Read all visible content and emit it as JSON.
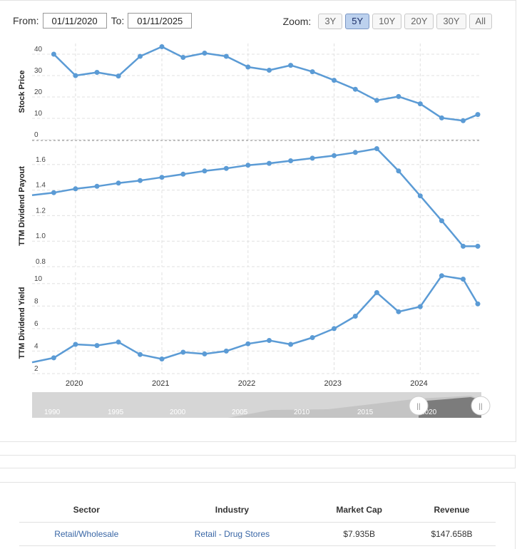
{
  "controls": {
    "from_label": "From:",
    "from_value": "01/11/2020",
    "to_label": "To:",
    "to_value": "01/11/2025",
    "zoom_label": "Zoom:",
    "zoom_options": [
      "3Y",
      "5Y",
      "10Y",
      "20Y",
      "30Y",
      "All"
    ],
    "zoom_active": "5Y"
  },
  "colors": {
    "line": "#5b9bd5",
    "grid": "#e0e0e0",
    "navigator_fill": "#d6d6d6",
    "navigator_selected": "#7c7c7c",
    "zoom_active_bg": "#bcd1ee"
  },
  "chart_data": [
    {
      "type": "line",
      "ylabel": "Stock Price",
      "ylim": [
        0,
        45
      ],
      "yticks": [
        "0",
        "10",
        "20",
        "30",
        "40"
      ],
      "grid": true,
      "x": [
        "2019-10",
        "2020-01",
        "2020-04",
        "2020-07",
        "2020-10",
        "2021-01",
        "2021-04",
        "2021-07",
        "2021-10",
        "2022-01",
        "2022-04",
        "2022-07",
        "2022-10",
        "2023-01",
        "2023-04",
        "2023-07",
        "2023-10",
        "2024-01",
        "2024-04",
        "2024-07",
        "2024-09"
      ],
      "values": [
        40,
        30,
        31.5,
        29.8,
        39,
        43.5,
        38.5,
        40.5,
        39,
        34,
        32.5,
        34.8,
        31.8,
        27.8,
        23.6,
        18.4,
        20.2,
        16.8,
        10.2,
        8.9,
        11.8
      ]
    },
    {
      "type": "line",
      "ylabel": "TTM Dividend Payout",
      "ylim": [
        0.8,
        1.75
      ],
      "yticks": [
        "0.8",
        "1.0",
        "1.2",
        "1.4",
        "1.6"
      ],
      "grid": true,
      "x": [
        "2019-07",
        "2019-10",
        "2020-01",
        "2020-04",
        "2020-07",
        "2020-10",
        "2021-01",
        "2021-04",
        "2021-07",
        "2021-10",
        "2022-01",
        "2022-04",
        "2022-07",
        "2022-10",
        "2023-01",
        "2023-04",
        "2023-07",
        "2023-10",
        "2024-01",
        "2024-04",
        "2024-07",
        "2024-09"
      ],
      "values": [
        1.36,
        1.38,
        1.41,
        1.43,
        1.455,
        1.475,
        1.5,
        1.525,
        1.55,
        1.57,
        1.595,
        1.61,
        1.63,
        1.65,
        1.67,
        1.695,
        1.725,
        1.55,
        1.355,
        1.16,
        0.96,
        0.96
      ]
    },
    {
      "type": "line",
      "ylabel": "TTM Dividend Yield",
      "ylim": [
        2,
        11
      ],
      "yticks": [
        "2",
        "4",
        "6",
        "8",
        "10"
      ],
      "xticks": [
        "2020",
        "2021",
        "2022",
        "2023",
        "2024"
      ],
      "grid": true,
      "x": [
        "2019-07",
        "2019-10",
        "2020-01",
        "2020-04",
        "2020-07",
        "2020-10",
        "2021-01",
        "2021-04",
        "2021-07",
        "2021-10",
        "2022-01",
        "2022-04",
        "2022-07",
        "2022-10",
        "2023-01",
        "2023-04",
        "2023-07",
        "2023-10",
        "2024-01",
        "2024-04",
        "2024-07",
        "2024-09"
      ],
      "values": [
        3.0,
        3.4,
        4.6,
        4.5,
        4.8,
        3.7,
        3.3,
        3.9,
        3.75,
        4.0,
        4.65,
        4.95,
        4.6,
        5.2,
        6.0,
        7.1,
        9.2,
        7.5,
        7.95,
        10.7,
        10.4,
        8.2
      ]
    }
  ],
  "navigator": {
    "year_labels": [
      "1990",
      "1995",
      "2000",
      "2005",
      "2010",
      "2015",
      "2020"
    ],
    "handle_glyph": "||"
  },
  "info_table": {
    "headers": [
      "Sector",
      "Industry",
      "Market Cap",
      "Revenue"
    ],
    "row": [
      "Retail/Wholesale",
      "Retail - Drug Stores",
      "$7.935B",
      "$147.658B"
    ]
  }
}
